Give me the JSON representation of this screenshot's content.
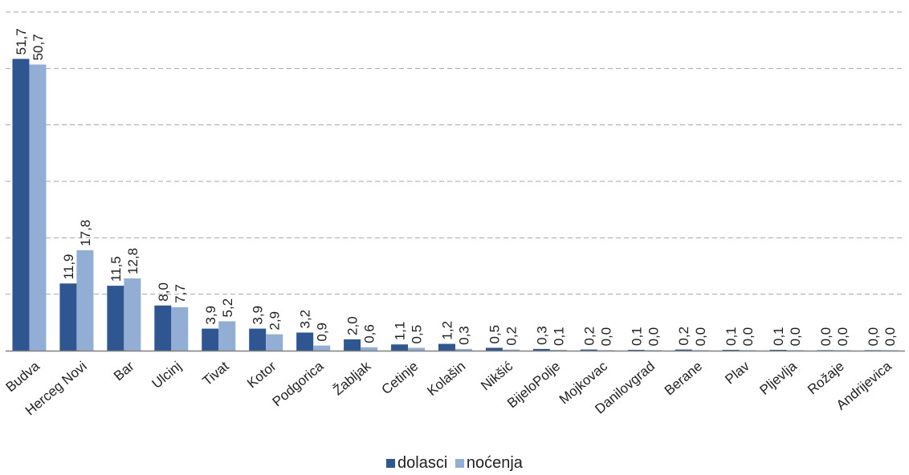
{
  "chart_data": {
    "type": "bar",
    "title": "",
    "xlabel": "",
    "ylabel": "",
    "ylim": [
      0,
      60
    ],
    "grid": true,
    "legend_position": "bottom",
    "categories": [
      "Budva",
      "Herceg Novi",
      "Bar",
      "Ulcinj",
      "Tivat",
      "Kotor",
      "Podgorica",
      "Žabljak",
      "Cetinje",
      "Kolašin",
      "Nikšić",
      "BijeloPolje",
      "Mojkovac",
      "Danilovgrad",
      "Berane",
      "Plav",
      "Pljevlja",
      "Rožaje",
      "Andrijevica"
    ],
    "series": [
      {
        "name": "dolasci",
        "color": "#2f5690",
        "values": [
          51.7,
          11.9,
          11.5,
          8.0,
          3.9,
          3.9,
          3.2,
          2.0,
          1.1,
          1.2,
          0.5,
          0.3,
          0.2,
          0.1,
          0.2,
          0.1,
          0.1,
          0.0,
          0.0
        ],
        "labels": [
          "51,7",
          "11,9",
          "11,5",
          "8,0",
          "3,9",
          "3,9",
          "3,2",
          "2,0",
          "1,1",
          "1,2",
          "0,5",
          "0,3",
          "0,2",
          "0,1",
          "0,2",
          "0,1",
          "0,1",
          "0,0",
          "0,0"
        ]
      },
      {
        "name": "noćenja",
        "color": "#93aed4",
        "values": [
          50.7,
          17.8,
          12.8,
          7.7,
          5.2,
          2.9,
          0.9,
          0.6,
          0.5,
          0.3,
          0.2,
          0.1,
          0.0,
          0.0,
          0.0,
          0.0,
          0.0,
          0.0,
          0.0
        ],
        "labels": [
          "50,7",
          "17,8",
          "12,8",
          "7,7",
          "5,2",
          "2,9",
          "0,9",
          "0,6",
          "0,5",
          "0,3",
          "0,2",
          "0,1",
          "0,0",
          "0,0",
          "0,0",
          "0,0",
          "0,0",
          "0,0",
          "0,0"
        ]
      }
    ]
  }
}
